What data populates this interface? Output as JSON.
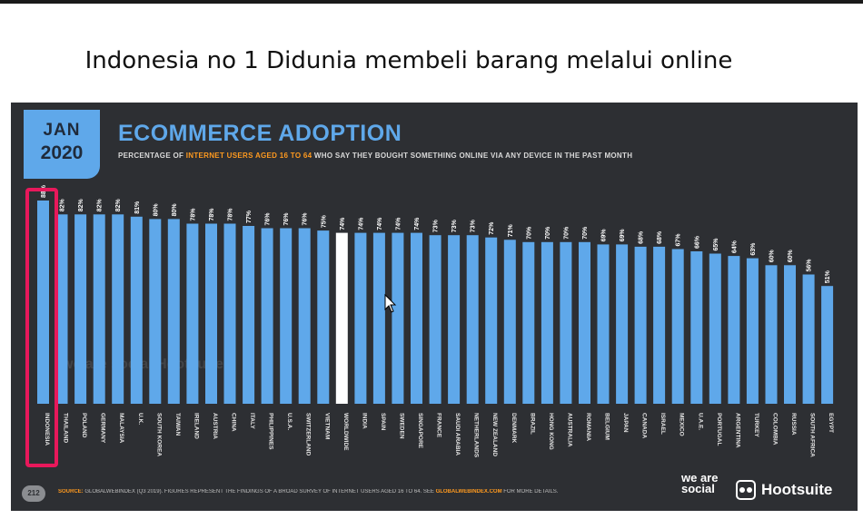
{
  "slide": {
    "title": "Indonesia no 1 Didunia membeli barang melalui online"
  },
  "badge": {
    "month": "JAN",
    "year": "2020"
  },
  "header": {
    "title": "ECOMMERCE ADOPTION",
    "subtitle_pre": "PERCENTAGE OF ",
    "subtitle_highlight": "INTERNET USERS AGED 16 TO 64",
    "subtitle_post": " WHO SAY THEY BOUGHT SOMETHING ONLINE VIA ANY DEVICE IN THE PAST MONTH"
  },
  "footer": {
    "page": "212",
    "source_label": "SOURCE:",
    "source_text": " GLOBALWEBINDEX (Q3 2019). FIGURES REPRESENT THE FINDINGS OF A BROAD SURVEY OF INTERNET USERS AGED 16 TO 64. SEE ",
    "source_link": "GLOBALWEBINDEX.COM",
    "source_tail": " FOR MORE DETAILS.",
    "brand_was": "we are social",
    "brand_hootsuite": "Hootsuite"
  },
  "watermark": "we are social  Hootsuite",
  "colors": {
    "bar": "#5fa8ea",
    "highlight_bar": "#ffffff",
    "panel_bg": "#2d2f33",
    "callout": "#e8185b",
    "accent": "#ff9a1f"
  },
  "chart_data": {
    "type": "bar",
    "categories": [
      "INDONESIA",
      "THAILAND",
      "POLAND",
      "GERMANY",
      "MALAYSIA",
      "U.K.",
      "SOUTH KOREA",
      "TAIWAN",
      "IRELAND",
      "AUSTRIA",
      "CHINA",
      "ITALY",
      "PHILIPPINES",
      "U.S.A.",
      "SWITZERLAND",
      "VIETNAM",
      "WORLDWIDE",
      "INDIA",
      "SPAIN",
      "SWEDEN",
      "SINGAPORE",
      "FRANCE",
      "SAUDI ARABIA",
      "NETHERLANDS",
      "NEW ZEALAND",
      "DENMARK",
      "BRAZIL",
      "HONG KONG",
      "AUSTRALIA",
      "ROMANIA",
      "BELGIUM",
      "JAPAN",
      "CANADA",
      "ISRAEL",
      "MEXICO",
      "U.A.E.",
      "PORTUGAL",
      "ARGENTINA",
      "TURKEY",
      "COLOMBIA",
      "RUSSIA",
      "SOUTH AFRICA",
      "EGYPT"
    ],
    "values": [
      88,
      82,
      82,
      82,
      82,
      81,
      80,
      80,
      78,
      78,
      78,
      77,
      76,
      76,
      76,
      75,
      74,
      74,
      74,
      74,
      74,
      73,
      73,
      73,
      72,
      71,
      70,
      70,
      70,
      70,
      69,
      69,
      68,
      68,
      67,
      66,
      65,
      64,
      63,
      60,
      60,
      56,
      51
    ],
    "labels": [
      "88%",
      "82%",
      "82%",
      "82%",
      "82%",
      "81%",
      "80%",
      "80%",
      "78%",
      "78%",
      "78%",
      "77%",
      "76%",
      "76%",
      "76%",
      "75%",
      "74%",
      "74%",
      "74%",
      "74%",
      "74%",
      "73%",
      "73%",
      "73%",
      "72%",
      "71%",
      "70%",
      "70%",
      "70%",
      "70%",
      "69%",
      "69%",
      "68%",
      "68%",
      "67%",
      "66%",
      "65%",
      "64%",
      "63%",
      "60%",
      "60%",
      "56%",
      "51%"
    ],
    "highlight_index": 16,
    "callout_index": 0,
    "ylim": [
      0,
      100
    ],
    "grid": false,
    "legend": "none"
  }
}
